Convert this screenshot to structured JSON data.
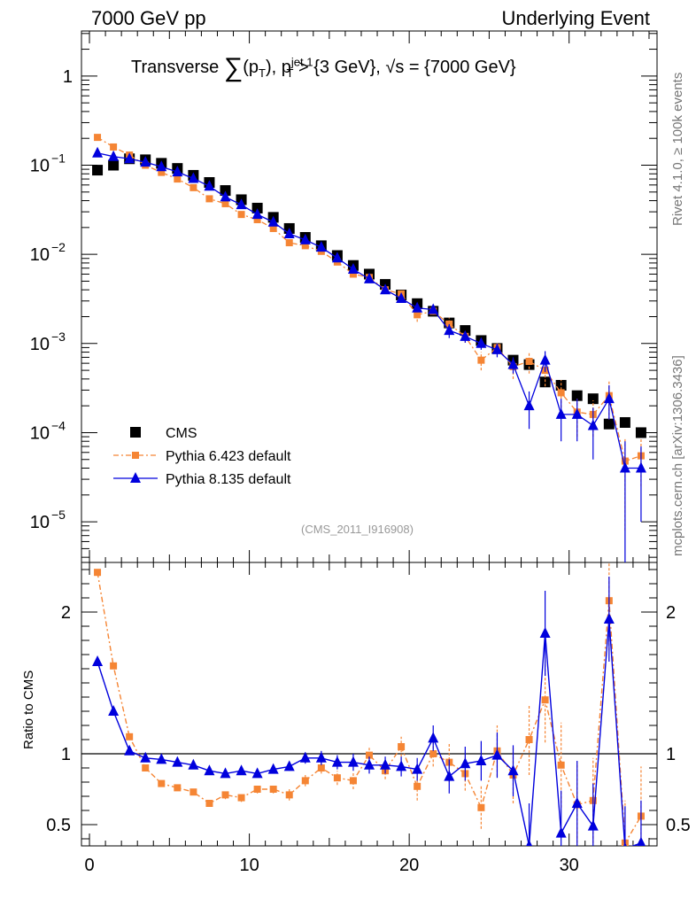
{
  "header": {
    "left": "7000 GeV pp",
    "right": "Underlying Event"
  },
  "side_labels": {
    "top": "Rivet 4.1.0, ≥ 100k events",
    "bottom": "mcplots.cern.ch [arXiv:1306.3436]"
  },
  "watermark": "(CMS_2011_I916908)",
  "title": {
    "prefix": "Transverse",
    "sum": "∑",
    "arg": "(p",
    "arg_sub": "T",
    "arg_close": "), p",
    "p_sup": "jet 1",
    "p_sub": "T",
    "cut": " > {3 GeV}, √s = {7000 GeV}"
  },
  "colors": {
    "cms": "#000000",
    "pythia6": "#f58534",
    "pythia8": "#0000dd"
  },
  "chart_data": [
    {
      "type": "scatter",
      "panel": "main",
      "yscale": "log",
      "xlim": [
        -0.5,
        35.5
      ],
      "ylim": [
        3.5e-06,
        3.2
      ],
      "yticks": [
        {
          "value": 1e-05,
          "base": "10",
          "exp": "−5"
        },
        {
          "value": 0.0001,
          "base": "10",
          "exp": "−4"
        },
        {
          "value": 0.001,
          "base": "10",
          "exp": "−3"
        },
        {
          "value": 0.01,
          "base": "10",
          "exp": "−2"
        },
        {
          "value": 0.1,
          "base": "10",
          "exp": "−1"
        },
        {
          "value": 1,
          "base": "1",
          "exp": ""
        }
      ],
      "legend": [
        {
          "label": "CMS",
          "series": "cms"
        },
        {
          "label": "Pythia 6.423 default",
          "series": "pythia6"
        },
        {
          "label": "Pythia 8.135 default",
          "series": "pythia8"
        }
      ],
      "series": [
        {
          "key": "cms",
          "name": "CMS",
          "x": [
            0.5,
            1.5,
            2.5,
            3.5,
            4.5,
            5.5,
            6.5,
            7.5,
            8.5,
            9.5,
            10.5,
            11.5,
            12.5,
            13.5,
            14.5,
            15.5,
            16.5,
            17.5,
            18.5,
            19.5,
            20.5,
            21.5,
            22.5,
            23.5,
            24.5,
            25.5,
            26.5,
            27.5,
            28.5,
            29.5,
            30.5,
            31.5,
            32.5,
            33.5,
            34.5
          ],
          "y": [
            0.088,
            0.1,
            0.118,
            0.115,
            0.105,
            0.092,
            0.077,
            0.064,
            0.052,
            0.041,
            0.033,
            0.026,
            0.0195,
            0.0155,
            0.0125,
            0.0097,
            0.0075,
            0.006,
            0.0046,
            0.0035,
            0.0028,
            0.0023,
            0.0017,
            0.0014,
            0.00108,
            0.00088,
            0.00065,
            0.00058,
            0.00037,
            0.00034,
            0.00026,
            0.00024,
            0.000125,
            0.00013,
            0.0001
          ]
        },
        {
          "key": "pythia6",
          "name": "Pythia 6.423 default",
          "x": [
            0.5,
            1.5,
            2.5,
            3.5,
            4.5,
            5.5,
            6.5,
            7.5,
            8.5,
            9.5,
            10.5,
            11.5,
            12.5,
            13.5,
            14.5,
            15.5,
            16.5,
            17.5,
            18.5,
            19.5,
            20.5,
            21.5,
            22.5,
            23.5,
            24.5,
            25.5,
            26.5,
            27.5,
            28.5,
            29.5,
            30.5,
            31.5,
            32.5,
            33.5,
            34.5
          ],
          "y": [
            0.205,
            0.16,
            0.13,
            0.1,
            0.083,
            0.07,
            0.056,
            0.042,
            0.037,
            0.028,
            0.0245,
            0.0195,
            0.0135,
            0.0125,
            0.0108,
            0.0082,
            0.006,
            0.0055,
            0.004,
            0.0036,
            0.0021,
            0.0023,
            0.00165,
            0.0012,
            0.00065,
            0.0009,
            0.00055,
            0.00063,
            0.0005,
            0.00028,
            0.00017,
            0.00016,
            0.00026,
            4.8e-05,
            5.5e-05
          ],
          "err": [
            0.004,
            0.003,
            0.002,
            0.002,
            0.0015,
            0.0012,
            0.001,
            0.0008,
            0.0007,
            0.0005,
            0.0004,
            0.0003,
            0.0002,
            0.0002,
            0.00018,
            0.00015,
            0.00012,
            0.00011,
            0.0001,
            0.0001,
            0.00035,
            0.0002,
            0.0003,
            0.00018,
            0.00015,
            0.00015,
            0.00015,
            0.00017,
            0.00017,
            0.00011,
            8e-05,
            7e-05,
            0.00012,
            4e-05,
            3e-05
          ],
          "ratio": [
            2.28,
            1.62,
            1.12,
            0.9,
            0.79,
            0.76,
            0.73,
            0.65,
            0.71,
            0.69,
            0.75,
            0.75,
            0.71,
            0.81,
            0.9,
            0.83,
            0.81,
            0.99,
            0.88,
            1.05,
            0.77,
            1.0,
            0.94,
            0.86,
            0.62,
            1.02,
            0.85,
            1.1,
            1.38,
            0.92,
            0.64,
            0.67,
            2.08,
            0.37,
            0.56
          ],
          "ratio_err": [
            0.02,
            0.02,
            0.02,
            0.02,
            0.015,
            0.015,
            0.02,
            0.02,
            0.03,
            0.03,
            0.03,
            0.03,
            0.04,
            0.04,
            0.04,
            0.05,
            0.06,
            0.06,
            0.06,
            0.07,
            0.1,
            0.09,
            0.14,
            0.12,
            0.15,
            0.18,
            0.2,
            0.25,
            0.3,
            0.3,
            0.3,
            0.3,
            0.35,
            0.3,
            0.35
          ]
        },
        {
          "key": "pythia8",
          "name": "Pythia 8.135 default",
          "x": [
            0.5,
            1.5,
            2.5,
            3.5,
            4.5,
            5.5,
            6.5,
            7.5,
            8.5,
            9.5,
            10.5,
            11.5,
            12.5,
            13.5,
            14.5,
            15.5,
            16.5,
            17.5,
            18.5,
            19.5,
            20.5,
            21.5,
            22.5,
            23.5,
            24.5,
            25.5,
            26.5,
            27.5,
            28.5,
            29.5,
            30.5,
            31.5,
            32.5,
            33.5,
            34.5
          ],
          "y": [
            0.137,
            0.125,
            0.118,
            0.108,
            0.096,
            0.084,
            0.071,
            0.058,
            0.044,
            0.036,
            0.028,
            0.023,
            0.017,
            0.0145,
            0.012,
            0.0091,
            0.0068,
            0.0053,
            0.004,
            0.0032,
            0.0025,
            0.0024,
            0.0014,
            0.0012,
            0.001,
            0.00085,
            0.00058,
            0.0002,
            0.00065,
            0.00016,
            0.00016,
            0.00012,
            0.00024,
            4e-05,
            4e-05
          ],
          "err": [
            0.003,
            0.002,
            0.002,
            0.002,
            0.0015,
            0.0012,
            0.001,
            0.0008,
            0.0007,
            0.0005,
            0.0004,
            0.0003,
            0.0002,
            0.0002,
            0.00018,
            0.00015,
            0.00012,
            0.00011,
            0.0001,
            0.0001,
            0.00012,
            0.00015,
            0.00025,
            0.00018,
            0.00015,
            0.00015,
            0.00012,
            9e-05,
            0.00017,
            8e-05,
            8e-05,
            7e-05,
            0.0001,
            4e-05,
            3e-05
          ],
          "ratio": [
            1.65,
            1.3,
            1.02,
            0.97,
            0.96,
            0.94,
            0.92,
            0.88,
            0.86,
            0.88,
            0.86,
            0.89,
            0.91,
            0.97,
            0.97,
            0.94,
            0.94,
            0.92,
            0.92,
            0.91,
            0.89,
            1.11,
            0.84,
            0.93,
            0.95,
            0.99,
            0.88,
            0.35,
            1.85,
            0.44,
            0.65,
            0.49,
            1.95,
            0.33,
            0.37
          ],
          "ratio_err": [
            0.02,
            0.02,
            0.02,
            0.02,
            0.015,
            0.015,
            0.02,
            0.02,
            0.02,
            0.02,
            0.02,
            0.03,
            0.03,
            0.04,
            0.05,
            0.05,
            0.06,
            0.06,
            0.06,
            0.07,
            0.08,
            0.09,
            0.12,
            0.12,
            0.14,
            0.16,
            0.18,
            0.3,
            0.3,
            0.3,
            0.3,
            0.3,
            0.3,
            0.3,
            0.3
          ]
        }
      ]
    },
    {
      "type": "scatter",
      "panel": "ratio",
      "ylabel": "Ratio to CMS",
      "ylim": [
        0.35,
        2.35
      ],
      "xlim": [
        -0.5,
        35.5
      ],
      "yticks": [
        {
          "value": 0.5,
          "label": "0.5"
        },
        {
          "value": 1,
          "label": "1"
        },
        {
          "value": 2,
          "label": "2"
        }
      ],
      "xticks": [
        {
          "value": 0,
          "label": "0"
        },
        {
          "value": 10,
          "label": "10"
        },
        {
          "value": 20,
          "label": "20"
        },
        {
          "value": 30,
          "label": "30"
        }
      ],
      "reference_line": 1
    }
  ]
}
